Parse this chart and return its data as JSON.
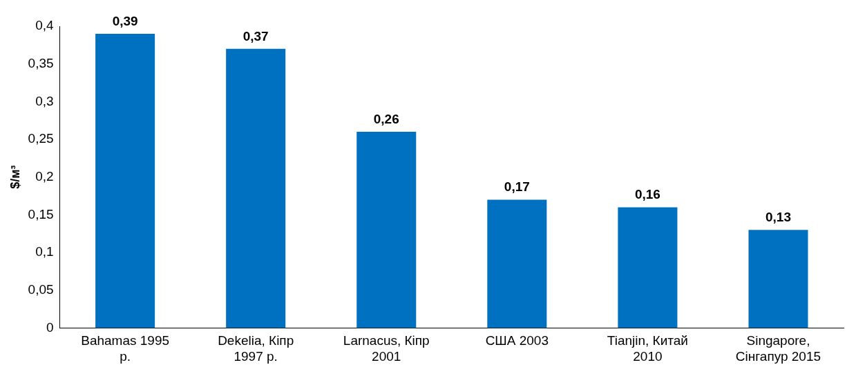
{
  "chart_data": {
    "type": "bar",
    "ylabel": "$/м³",
    "categories": [
      "Bahamas 1995 р.",
      "Dekelia, Кіпр 1997 р.",
      "Larnacus, Кіпр 2001",
      "США 2003",
      "Tianjin, Китай 2010",
      "Singapore, Сінгапур 2015"
    ],
    "values": [
      0.39,
      0.37,
      0.26,
      0.17,
      0.16,
      0.13
    ],
    "color": "#0070c0",
    "ylim": [
      0,
      0.4
    ],
    "yticks": [
      {
        "value": 0,
        "label": "0"
      },
      {
        "value": 0.05,
        "label": "0,05"
      },
      {
        "value": 0.1,
        "label": "0,1"
      },
      {
        "value": 0.15,
        "label": "0,15"
      },
      {
        "value": 0.2,
        "label": "0,2"
      },
      {
        "value": 0.25,
        "label": "0,25"
      },
      {
        "value": 0.3,
        "label": "0,3"
      },
      {
        "value": 0.35,
        "label": "0,35"
      },
      {
        "value": 0.4,
        "label": "0,4"
      }
    ],
    "value_labels": [
      "0,39",
      "0,37",
      "0,26",
      "0,17",
      "0,16",
      "0,13"
    ],
    "grid": false,
    "legend": false
  }
}
